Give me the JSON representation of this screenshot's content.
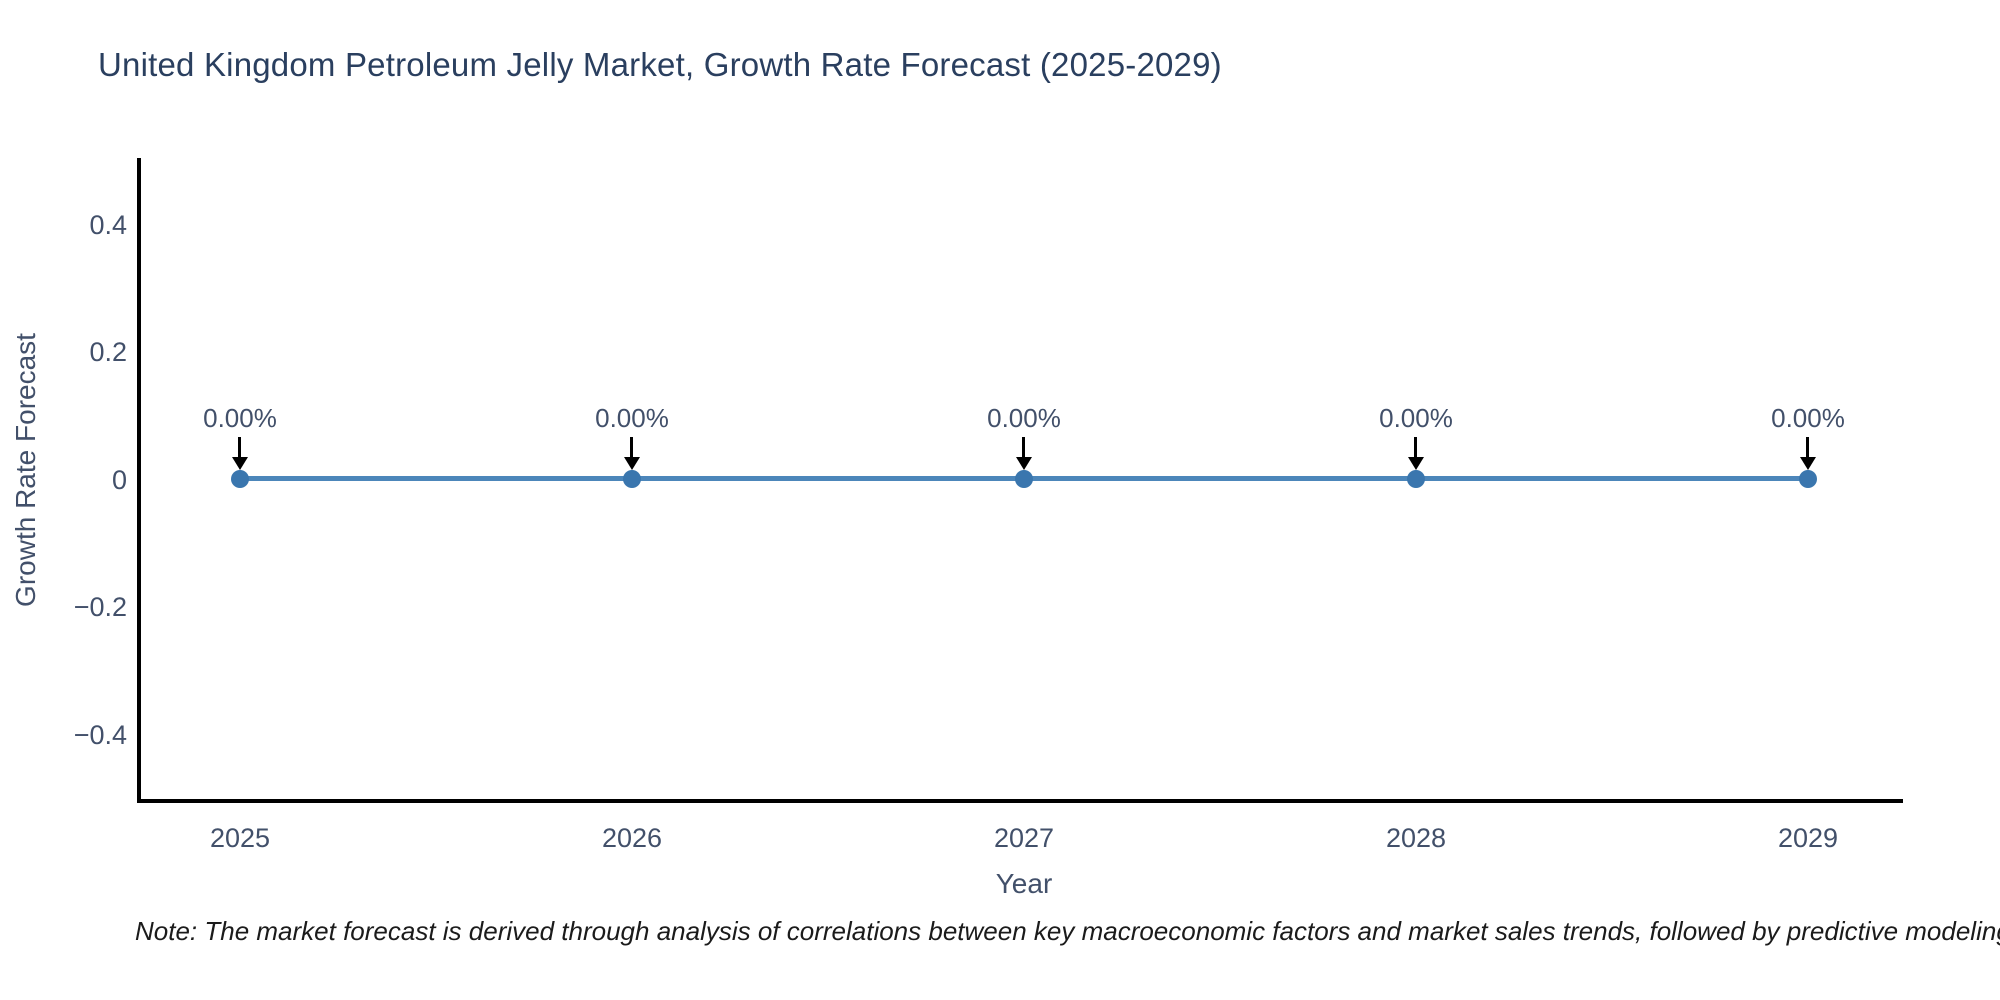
{
  "chart_data": {
    "type": "line",
    "title": "United Kingdom Petroleum Jelly Market, Growth Rate Forecast (2025-2029)",
    "xlabel": "Year",
    "ylabel": "Growth Rate Forecast",
    "x": [
      "2025",
      "2026",
      "2027",
      "2028",
      "2029"
    ],
    "values": [
      0,
      0,
      0,
      0,
      0
    ],
    "point_labels": [
      "0.00%",
      "0.00%",
      "0.00%",
      "0.00%",
      "0.00%"
    ],
    "ytick_labels": [
      "0.4",
      "0.2",
      "0",
      "−0.2",
      "−0.4"
    ],
    "ylim": [
      -0.5,
      0.5
    ],
    "grid": false,
    "legend_position": "none",
    "line_color": "#4c86ba",
    "marker_color": "#3a76ae",
    "arrow_color": "#000000",
    "title_color": "#2a3f5f",
    "footnote": "Note: The market forecast is derived through analysis of correlations between key macroeconomic factors and market sales trends, followed by predictive modeling to project future sa"
  }
}
